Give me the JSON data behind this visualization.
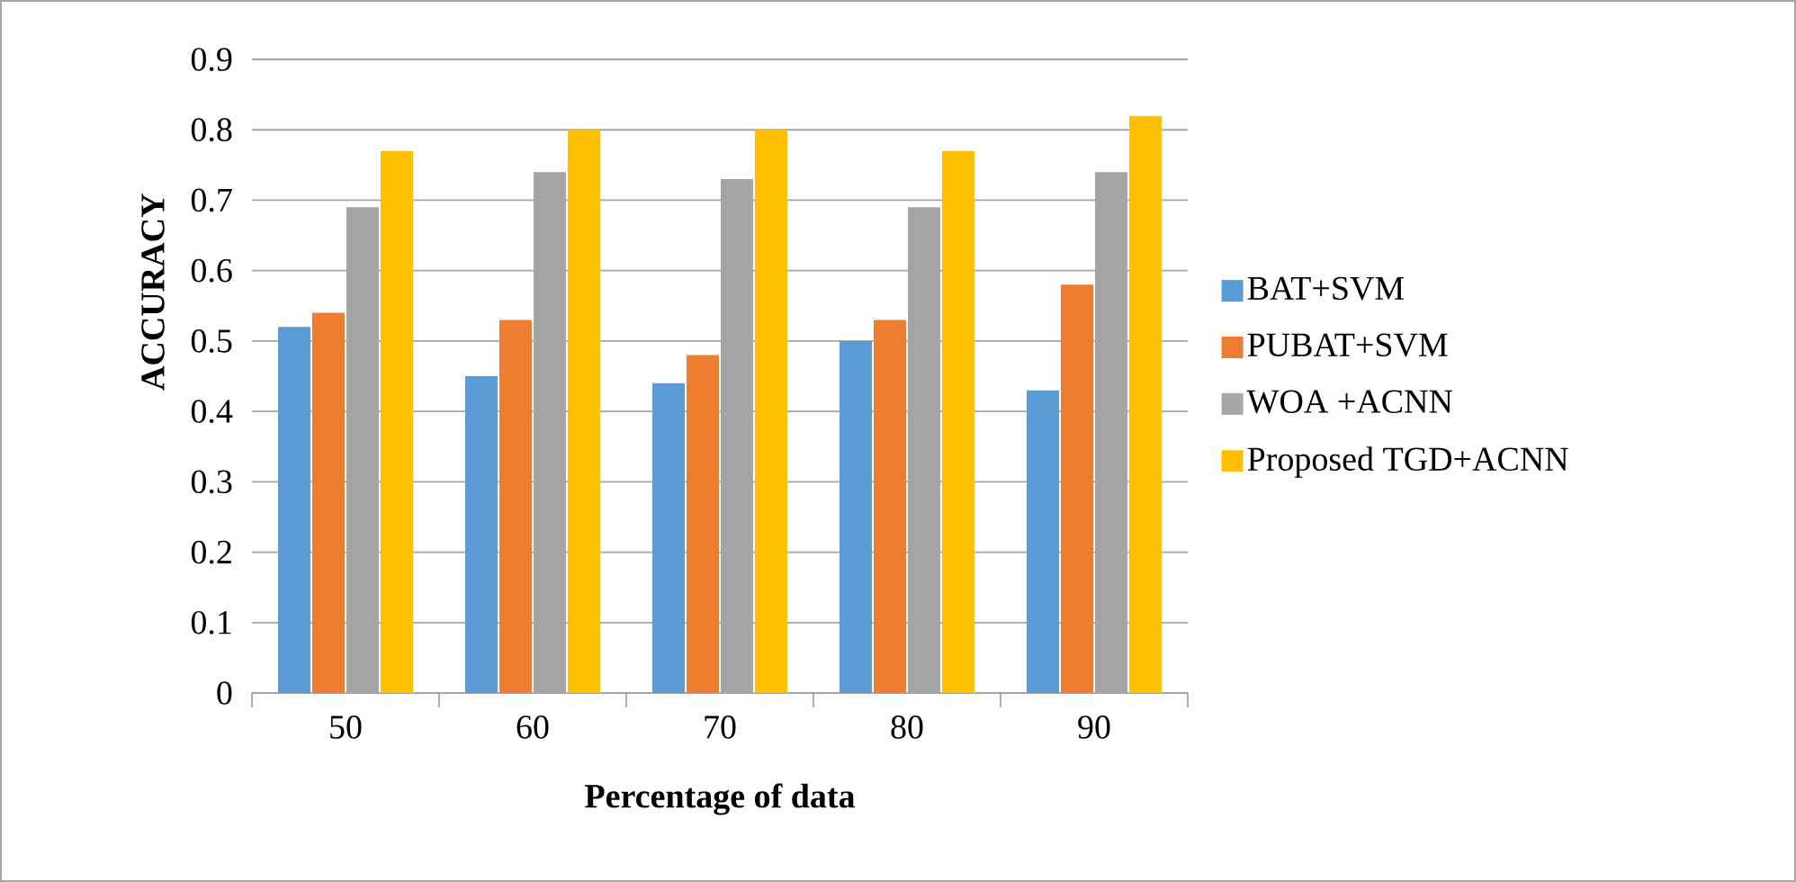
{
  "chart_data": {
    "type": "bar",
    "xlabel": "Percentage of data",
    "ylabel": "ACCURACY",
    "categories": [
      "50",
      "60",
      "70",
      "80",
      "90"
    ],
    "series": [
      {
        "name": "BAT+SVM",
        "color": "#5b9bd5",
        "values": [
          0.52,
          0.45,
          0.44,
          0.5,
          0.43
        ]
      },
      {
        "name": "PUBAT+SVM",
        "color": "#ed7d31",
        "values": [
          0.54,
          0.53,
          0.48,
          0.53,
          0.58
        ]
      },
      {
        "name": "WOA +ACNN",
        "color": "#a5a5a5",
        "values": [
          0.69,
          0.74,
          0.73,
          0.69,
          0.74
        ]
      },
      {
        "name": "Proposed TGD+ACNN",
        "color": "#ffc000",
        "values": [
          0.77,
          0.8,
          0.8,
          0.77,
          0.82
        ]
      }
    ],
    "ylim": [
      0,
      0.9
    ],
    "yticks": [
      0,
      0.1,
      0.2,
      0.3,
      0.4,
      0.5,
      0.6,
      0.7,
      0.8,
      0.9
    ],
    "grid": "y",
    "legend": "right"
  }
}
